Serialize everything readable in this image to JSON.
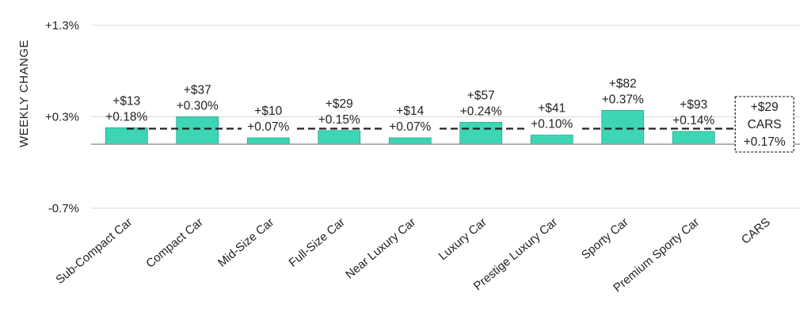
{
  "chart_data": {
    "type": "bar",
    "ylabel": "WEEKLY CHANGE",
    "ylim": [
      -0.7,
      1.3
    ],
    "yticks": [
      "+1.3%",
      "+0.3%",
      "-0.7%"
    ],
    "ytick_values": [
      1.3,
      0.3,
      -0.7
    ],
    "categories": [
      "Sub-Compact Car",
      "Compact Car",
      "Mid-Size Car",
      "Full-Size Car",
      "Near Luxury Car",
      "Luxury Car",
      "Prestige Luxury Car",
      "Sporty Car",
      "Premium Sporty Car",
      "CARS"
    ],
    "values": [
      0.18,
      0.3,
      0.07,
      0.15,
      0.07,
      0.24,
      0.1,
      0.37,
      0.14,
      0.17
    ],
    "dollar_labels": [
      "+$13",
      "+$37",
      "+$10",
      "+$29",
      "+$14",
      "+$57",
      "+$41",
      "+$82",
      "+$93",
      "+$29"
    ],
    "pct_labels": [
      "+0.18%",
      "+0.30%",
      "+0.07%",
      "+0.15%",
      "+0.07%",
      "+0.24%",
      "+0.10%",
      "+0.37%",
      "+0.14%",
      "+0.17%"
    ],
    "reference_line": 0.17,
    "summary_box": {
      "dollar": "+$29",
      "name": "CARS",
      "pct": "+0.17%"
    },
    "colors": {
      "bar": "#3dd6b5",
      "bar_edge": "#2aa88c",
      "reference": "#222222",
      "axis": "#999999",
      "grid": "#d9d9d9"
    }
  }
}
